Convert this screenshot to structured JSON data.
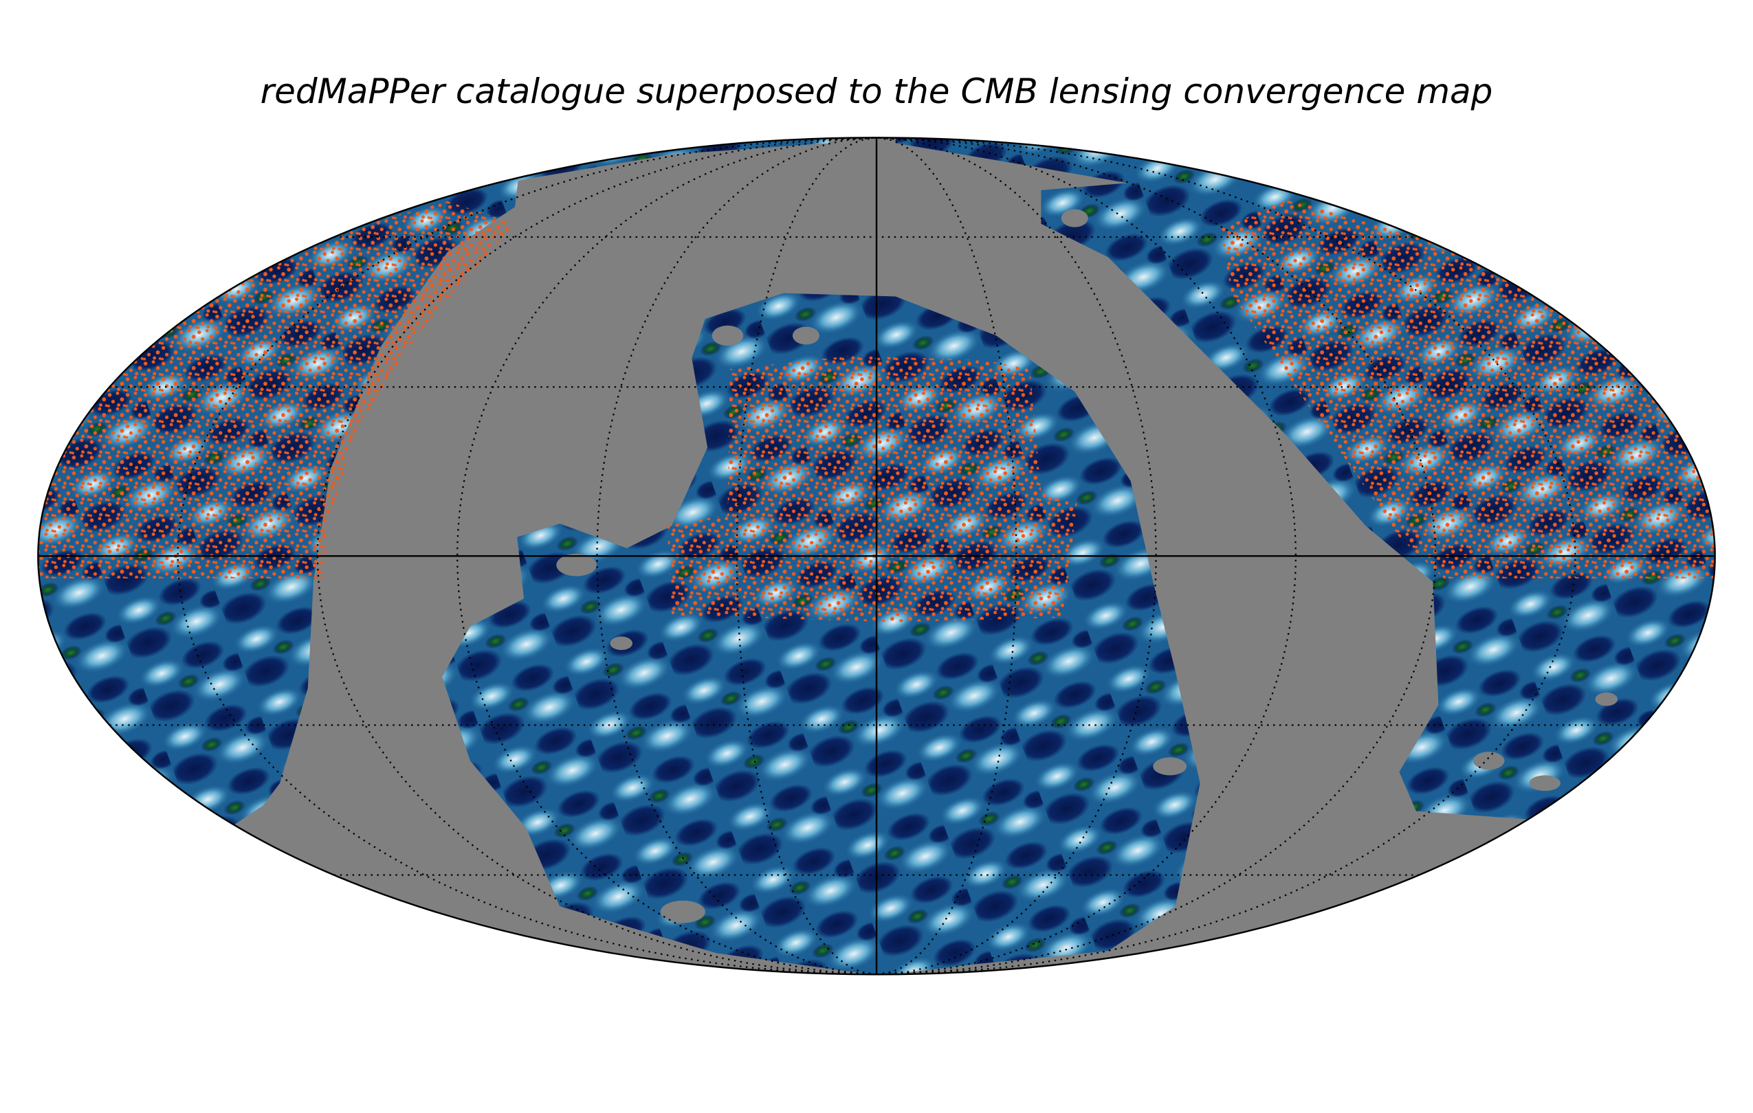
{
  "title": "redMaPPer catalogue superposed to the CMB lensing convergence map"
}
